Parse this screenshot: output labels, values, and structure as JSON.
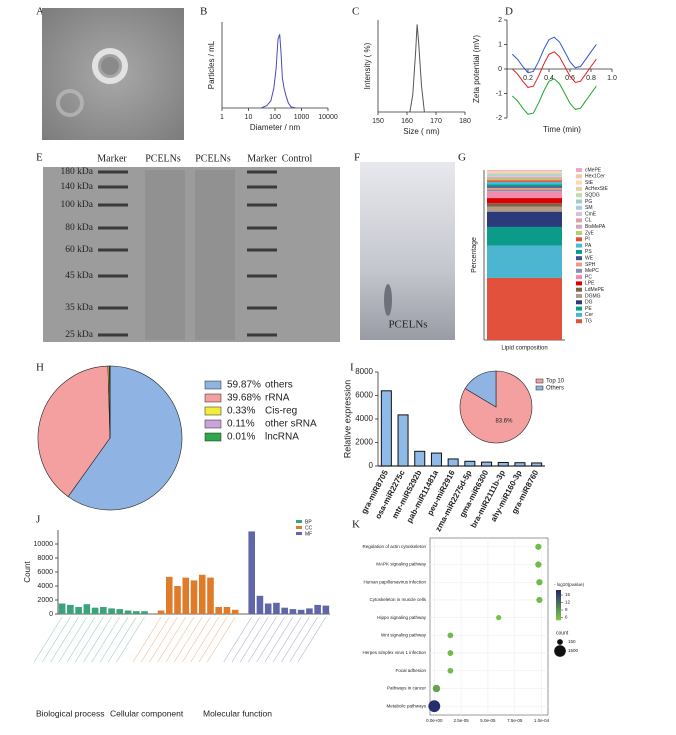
{
  "images": [
    {
      "panel": "A"
    },
    {
      "panel": "E",
      "lanes": [
        "Marker",
        "PCELNs",
        "PCELNs",
        "Marker",
        "Control"
      ],
      "markers": [
        "180 kDa",
        "140 kDa",
        "100 kDa",
        "80 kDa",
        "60 kDa",
        "45 kDa",
        "35 kDa",
        "25 kDa"
      ]
    },
    {
      "panel": "F",
      "label": "PCELNs"
    }
  ],
  "chart_data": [
    {
      "type": "line",
      "panel": "B",
      "xlabel": "Diameter / nm",
      "ylabel": "Particles / mL",
      "xlog": true,
      "xlim": [
        1,
        10000
      ],
      "xticks": [
        1,
        10,
        100,
        1000,
        10000
      ],
      "ylim": [
        0,
        3.5
      ],
      "x": [
        30,
        50,
        70,
        90,
        110,
        130,
        150,
        170,
        190,
        220,
        260,
        320,
        400,
        600
      ],
      "series": [
        {
          "color": "#4a4ab8",
          "values": [
            0,
            0.1,
            0.3,
            0.8,
            1.6,
            2.8,
            3.0,
            2.2,
            1.2,
            0.8,
            0.5,
            0.2,
            0.05,
            0
          ]
        }
      ]
    },
    {
      "type": "line",
      "panel": "C",
      "xlabel": "Size ( nm)",
      "ylabel": "Intensity ( %)",
      "xlim": [
        150,
        180
      ],
      "xticks": [
        150,
        160,
        170,
        180
      ],
      "ylim": [
        0,
        105
      ],
      "x": [
        161,
        162,
        163,
        163.5,
        164,
        165,
        166
      ],
      "series": [
        {
          "color": "#555555",
          "values": [
            0,
            20,
            70,
            100,
            80,
            30,
            0
          ]
        }
      ]
    },
    {
      "type": "line",
      "panel": "D",
      "xlabel": "Time (min)",
      "ylabel": "Zeta potential (mV)",
      "xlim": [
        0,
        1
      ],
      "xticks": [
        0.2,
        0.4,
        0.6,
        0.8,
        {
          "value": 1,
          "label": "1.0"
        }
      ],
      "ylim": [
        -2,
        2
      ],
      "yticks": [
        -2,
        -1,
        0,
        1,
        2
      ],
      "x": [
        0.05,
        0.1,
        0.15,
        0.2,
        0.25,
        0.3,
        0.35,
        0.4,
        0.45,
        0.5,
        0.55,
        0.6,
        0.65,
        0.7,
        0.75,
        0.8,
        0.85
      ],
      "series": [
        {
          "color": "#2f55d4",
          "values": [
            0.6,
            0.4,
            0.1,
            -0.15,
            -0.1,
            0.3,
            0.8,
            1.2,
            1.3,
            1.1,
            0.7,
            0.3,
            0.05,
            0.1,
            0.4,
            0.7,
            1.0
          ]
        },
        {
          "color": "#e02020",
          "values": [
            0.0,
            -0.2,
            -0.5,
            -0.75,
            -0.7,
            -0.3,
            0.2,
            0.6,
            0.7,
            0.5,
            0.1,
            -0.3,
            -0.55,
            -0.5,
            -0.2,
            0.1,
            0.4
          ]
        },
        {
          "color": "#1fa62a",
          "values": [
            -1.1,
            -1.3,
            -1.6,
            -1.85,
            -1.8,
            -1.4,
            -0.9,
            -0.5,
            -0.4,
            -0.6,
            -1.0,
            -1.4,
            -1.65,
            -1.6,
            -1.3,
            -1.0,
            -0.7
          ]
        }
      ]
    },
    {
      "type": "stacked-bar",
      "panel": "G",
      "xlabel": "Lipid composition",
      "ylabel": "Percentage",
      "ylim": [
        0,
        100
      ],
      "series": [
        {
          "name": "cMePE",
          "color": "#f4a6c8",
          "values": [
            0.5
          ]
        },
        {
          "name": "Hex1Cer",
          "color": "#f7c6a3",
          "values": [
            0.5
          ]
        },
        {
          "name": "StE",
          "color": "#f9d9b5",
          "values": [
            0.5
          ]
        },
        {
          "name": "AcHexStE",
          "color": "#e8d0a0",
          "values": [
            0.5
          ]
        },
        {
          "name": "SQDG",
          "color": "#c5dba5",
          "values": [
            0.5
          ]
        },
        {
          "name": "PG",
          "color": "#9ed0c0",
          "values": [
            0.5
          ]
        },
        {
          "name": "SM",
          "color": "#b0c8e6",
          "values": [
            0.5
          ]
        },
        {
          "name": "CmE",
          "color": "#d4c1e0",
          "values": [
            0.5
          ]
        },
        {
          "name": "CL",
          "color": "#e4a0a0",
          "values": [
            0.5
          ]
        },
        {
          "name": "BisMePA",
          "color": "#d5a6bd",
          "values": [
            0.5
          ]
        },
        {
          "name": "ZyE",
          "color": "#b5cf6b",
          "values": [
            1
          ]
        },
        {
          "name": "PI",
          "color": "#e64b35",
          "values": [
            1
          ]
        },
        {
          "name": "PA",
          "color": "#4dbbd5",
          "values": [
            1.5
          ]
        },
        {
          "name": "PS",
          "color": "#00a087",
          "values": [
            1
          ]
        },
        {
          "name": "WE",
          "color": "#3c5488",
          "values": [
            1
          ]
        },
        {
          "name": "SPH",
          "color": "#f39b7f",
          "values": [
            1
          ]
        },
        {
          "name": "MePC",
          "color": "#8491b4",
          "values": [
            1
          ]
        },
        {
          "name": "PC",
          "color": "#f08cab",
          "values": [
            4
          ]
        },
        {
          "name": "LPE",
          "color": "#dc0000",
          "values": [
            3
          ]
        },
        {
          "name": "LdMePE",
          "color": "#7e6148",
          "values": [
            2
          ]
        },
        {
          "name": "DGMG",
          "color": "#b09c85",
          "values": [
            3
          ]
        },
        {
          "name": "DG",
          "color": "#2b3a7a",
          "values": [
            9
          ]
        },
        {
          "name": "PE",
          "color": "#0a9b8a",
          "values": [
            11
          ]
        },
        {
          "name": "Cer",
          "color": "#4cb5cf",
          "values": [
            19
          ]
        },
        {
          "name": "TG",
          "color": "#e2513c",
          "values": [
            36.5
          ]
        }
      ]
    },
    {
      "type": "pie",
      "panel": "H",
      "categories": [
        "others",
        "rRNA",
        "Cis-reg",
        "other sRNA",
        "lncRNA"
      ],
      "values": [
        59.87,
        39.68,
        0.33,
        0.11,
        0.01
      ],
      "value_labels": [
        "59.87%",
        "39.68%",
        "0.33%",
        "0.11%",
        "0.01%"
      ],
      "colors": [
        "#8fb4e3",
        "#f4a0a0",
        "#f2ec3a",
        "#c9a3d9",
        "#2ea84a"
      ]
    },
    {
      "type": "bar",
      "panel": "I",
      "ylabel": "Relative expression",
      "ylim": [
        0,
        8000
      ],
      "yticks": [
        0,
        2000,
        4000,
        6000,
        8000
      ],
      "color": "#8fb9e6",
      "categories": [
        "gra-miR8705",
        "osa-miR2275c",
        "mtr-miR5292b",
        "pab-miR11481a",
        "peu-miR2916",
        "zma-miR2275d-5p",
        "gma-miR6300",
        "bra-miR2111b-3p",
        "ahy-miR160-3p",
        "gra-miR8760"
      ],
      "values": [
        6400,
        4350,
        1250,
        1100,
        600,
        400,
        330,
        300,
        280,
        260
      ]
    },
    {
      "type": "pie",
      "categories": [
        "Top 10",
        "Others"
      ],
      "values": [
        83.6,
        16.4
      ],
      "value_labels": [
        "83.6%",
        null
      ],
      "colors": [
        "#f4a0a0",
        "#8fb4e3"
      ]
    },
    {
      "type": "grouped-bar",
      "panel": "J",
      "ylabel": "Count",
      "ylim": [
        0,
        12000
      ],
      "yticks": [
        0,
        2000,
        4000,
        6000,
        8000,
        10000
      ],
      "group_labels": [
        "Biological process",
        "Cellular component",
        "Molecular function"
      ],
      "series": [
        {
          "name": "BP",
          "color": "#3aa37a",
          "values": [
            1500,
            1300,
            1000,
            1400,
            900,
            1000,
            800,
            700,
            500,
            400,
            400
          ]
        },
        {
          "name": "CC",
          "color": "#e07b2a",
          "values": [
            500,
            5300,
            4000,
            5200,
            4800,
            5600,
            5200,
            1000,
            1000,
            600
          ]
        },
        {
          "name": "MF",
          "color": "#6066a8",
          "values": [
            11800,
            2600,
            1500,
            1600,
            900,
            700,
            600,
            800,
            1300,
            1200
          ]
        }
      ]
    },
    {
      "type": "dot",
      "panel": "K",
      "color_label": "- log10(pvalue)",
      "size_label": "count",
      "xlim": [
        -4e-06,
        0.000106
      ],
      "xticks": [
        {
          "value": 0,
          "label": "0.0e+00"
        },
        {
          "value": 2.5e-05,
          "label": "2.5e-05"
        },
        {
          "value": 5e-05,
          "label": "5.0e-05"
        },
        {
          "value": 7.5e-05,
          "label": "7.5e-05"
        },
        {
          "value": 0.0001,
          "label": "1.0e-04"
        }
      ],
      "clim": [
        5,
        17
      ],
      "cticks": [
        6,
        9,
        12,
        15
      ],
      "size_ticks": [
        150,
        1500
      ],
      "categories": [
        "Regulation of actin cytoskeleton",
        "MAPK signaling pathway",
        "Human papillomavirus infection",
        "Cytoskeleton in muscle cells",
        "Hippo signaling pathway",
        "Wnt signaling pathway",
        "Herpes simplex virus 1 infection",
        "Focal adhesion",
        "Pathways in cancer",
        "Metabolic pathways"
      ],
      "values": [
        9.7e-05,
        9.7e-05,
        9.8e-05,
        9.8e-05,
        6e-05,
        1.5e-05,
        1.5e-05,
        1.5e-05,
        2e-06,
        0
      ],
      "log_p": [
        6,
        6,
        6,
        6,
        5.5,
        6,
        6,
        6,
        8,
        17
      ],
      "counts": [
        200,
        220,
        230,
        210,
        100,
        150,
        160,
        150,
        400,
        1600
      ]
    }
  ]
}
